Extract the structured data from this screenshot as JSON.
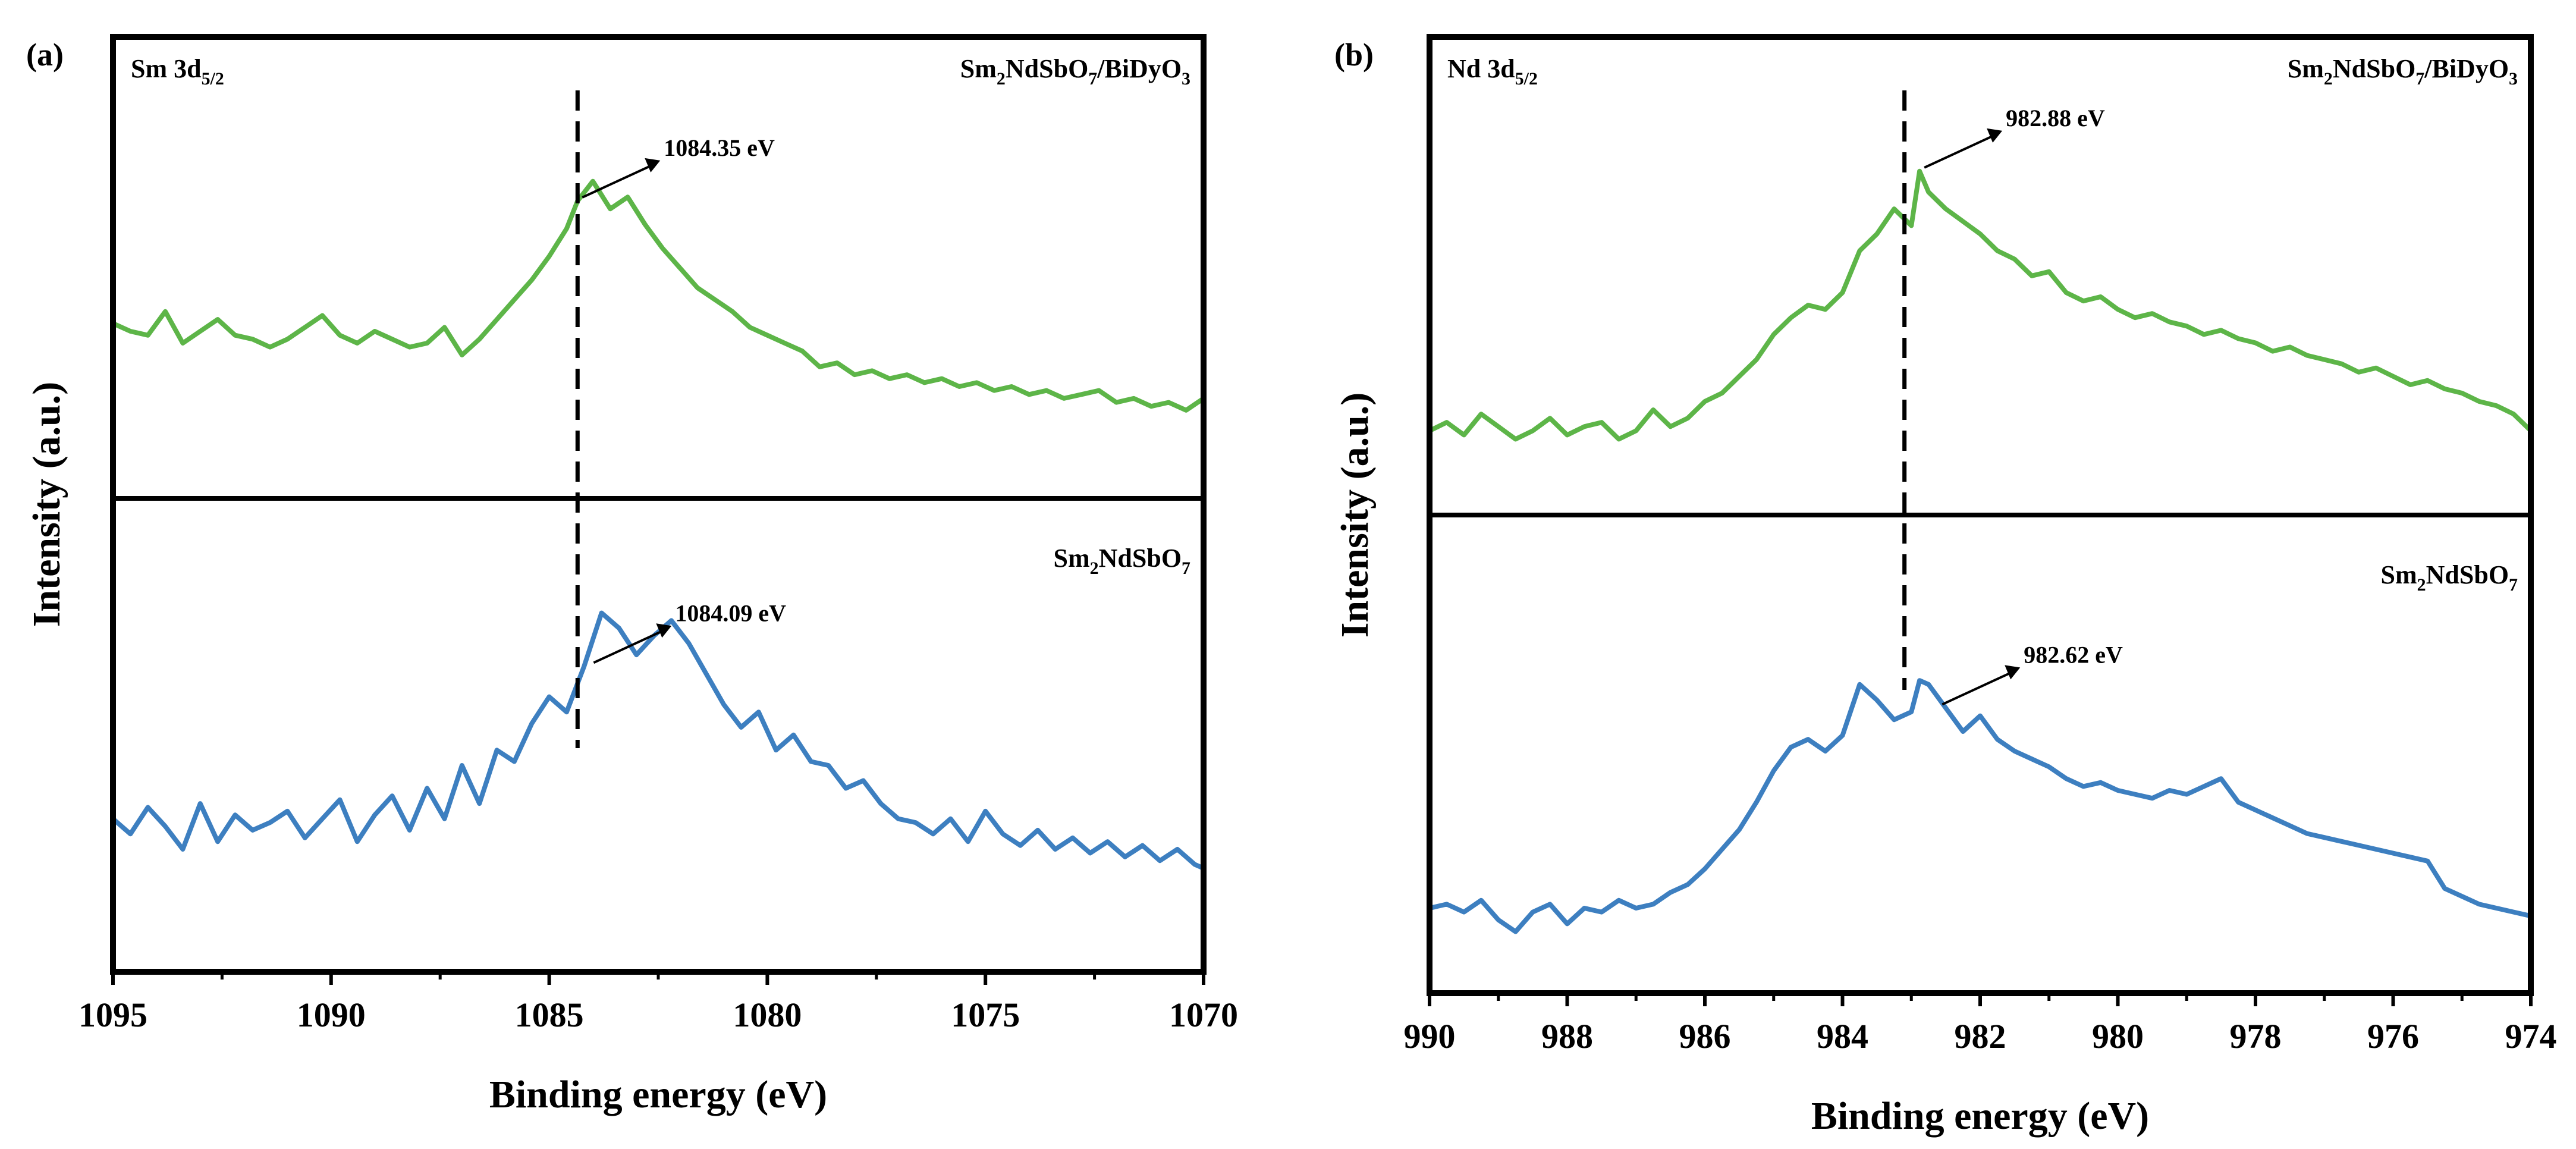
{
  "figure": {
    "colors": {
      "green": "#5db548",
      "blue": "#3d7fc0",
      "frame": "#000000"
    }
  },
  "chart_data": [
    {
      "type": "line",
      "panel_label": "(a)",
      "xlabel": "Binding energy (eV)",
      "ylabel": "Intensity (a.u.)",
      "xlim": [
        1095,
        1070
      ],
      "x_ticks": [
        1095,
        1090,
        1085,
        1080,
        1075,
        1070
      ],
      "x_tick_labels": [
        "1095",
        "1090",
        "1085",
        "1080",
        "1075",
        "1070"
      ],
      "x_minor_ticks": [
        1092.5,
        1087.5,
        1082.5,
        1077.5,
        1072.5
      ],
      "corner_label": {
        "base": "Sm 3d",
        "sub": "5/2"
      },
      "ref_line_x": 1084.35,
      "series": [
        {
          "name": "Sm2NdSbO7/BiDyO3",
          "name_parts": [
            [
              "Sm",
              ""
            ],
            [
              "2",
              "sub"
            ],
            [
              "NdSbO",
              ""
            ],
            [
              "7",
              "sub"
            ],
            [
              "/BiDyO",
              ""
            ],
            [
              "3",
              "sub"
            ]
          ],
          "color": "#5db548",
          "peak": {
            "x": 1084.35,
            "label": "1084.35 eV"
          },
          "ylim": [
            0,
            100
          ],
          "x": [
            1095.0,
            1094.6,
            1094.2,
            1093.8,
            1093.4,
            1093.0,
            1092.6,
            1092.2,
            1091.8,
            1091.4,
            1091.0,
            1090.6,
            1090.2,
            1089.8,
            1089.4,
            1089.0,
            1088.6,
            1088.2,
            1087.8,
            1087.4,
            1087.0,
            1086.6,
            1086.2,
            1085.8,
            1085.4,
            1085.0,
            1084.6,
            1084.35,
            1084.0,
            1083.6,
            1083.2,
            1082.8,
            1082.4,
            1082.0,
            1081.6,
            1081.2,
            1080.8,
            1080.4,
            1080.0,
            1079.6,
            1079.2,
            1078.8,
            1078.4,
            1078.0,
            1077.6,
            1077.2,
            1076.8,
            1076.4,
            1076.0,
            1075.6,
            1075.2,
            1074.8,
            1074.4,
            1074.0,
            1073.6,
            1073.2,
            1072.8,
            1072.4,
            1072.0,
            1071.6,
            1071.2,
            1070.8,
            1070.4,
            1070.0
          ],
          "y": [
            41,
            39,
            38,
            44,
            36,
            39,
            42,
            38,
            37,
            35,
            37,
            40,
            43,
            38,
            36,
            39,
            37,
            35,
            36,
            40,
            33,
            37,
            42,
            47,
            52,
            58,
            65,
            72,
            77,
            70,
            73,
            66,
            60,
            55,
            50,
            47,
            44,
            40,
            38,
            36,
            34,
            30,
            31,
            28,
            29,
            27,
            28,
            26,
            27,
            25,
            26,
            24,
            25,
            23,
            24,
            22,
            23,
            24,
            21,
            22,
            20,
            21,
            19,
            22
          ]
        },
        {
          "name": "Sm2NdSbO7",
          "name_parts": [
            [
              "Sm",
              ""
            ],
            [
              "2",
              "sub"
            ],
            [
              "NdSbO",
              ""
            ],
            [
              "7",
              "sub"
            ]
          ],
          "color": "#3d7fc0",
          "peak": {
            "x": 1084.09,
            "label": "1084.09 eV"
          },
          "ylim": [
            0,
            100
          ],
          "x": [
            1095.0,
            1094.6,
            1094.2,
            1093.8,
            1093.4,
            1093.0,
            1092.6,
            1092.2,
            1091.8,
            1091.4,
            1091.0,
            1090.6,
            1090.2,
            1089.8,
            1089.4,
            1089.0,
            1088.6,
            1088.2,
            1087.8,
            1087.4,
            1087.0,
            1086.6,
            1086.2,
            1085.8,
            1085.4,
            1085.0,
            1084.6,
            1084.2,
            1083.8,
            1083.4,
            1083.0,
            1082.6,
            1082.2,
            1081.8,
            1081.4,
            1081.0,
            1080.6,
            1080.2,
            1079.8,
            1079.4,
            1079.0,
            1078.6,
            1078.2,
            1077.8,
            1077.4,
            1077.0,
            1076.6,
            1076.2,
            1075.8,
            1075.4,
            1075.0,
            1074.6,
            1074.2,
            1073.8,
            1073.4,
            1073.0,
            1072.6,
            1072.2,
            1071.8,
            1071.4,
            1071.0,
            1070.6,
            1070.2,
            1070.0
          ],
          "y": [
            30,
            26,
            33,
            28,
            22,
            34,
            24,
            31,
            27,
            29,
            32,
            25,
            30,
            35,
            24,
            31,
            36,
            27,
            38,
            30,
            44,
            34,
            48,
            45,
            55,
            62,
            58,
            70,
            84,
            80,
            73,
            78,
            82,
            76,
            68,
            60,
            54,
            58,
            48,
            52,
            45,
            44,
            38,
            40,
            34,
            30,
            29,
            26,
            30,
            24,
            32,
            26,
            23,
            27,
            22,
            25,
            21,
            24,
            20,
            23,
            19,
            22,
            18,
            17
          ]
        }
      ]
    },
    {
      "type": "line",
      "panel_label": "(b)",
      "xlabel": "Binding energy (eV)",
      "ylabel": "Intensity (a.u.)",
      "xlim": [
        990,
        974
      ],
      "x_ticks": [
        990,
        988,
        986,
        984,
        982,
        980,
        978,
        976,
        974
      ],
      "x_tick_labels": [
        "990",
        "988",
        "986",
        "984",
        "982",
        "980",
        "978",
        "976",
        "974"
      ],
      "x_minor_ticks": [
        989,
        987,
        985,
        983,
        981,
        979,
        977,
        975
      ],
      "corner_label": {
        "base": "Nd 3d",
        "sub": "5/2"
      },
      "ref_line_x": 983.1,
      "series": [
        {
          "name": "Sm2NdSbO7/BiDyO3",
          "name_parts": [
            [
              "Sm",
              ""
            ],
            [
              "2",
              "sub"
            ],
            [
              "NdSbO",
              ""
            ],
            [
              "7",
              "sub"
            ],
            [
              "/BiDyO",
              ""
            ],
            [
              "3",
              "sub"
            ]
          ],
          "color": "#5db548",
          "peak": {
            "x": 982.88,
            "label": "982.88 eV"
          },
          "ylim": [
            0,
            100
          ],
          "x": [
            990.0,
            989.75,
            989.5,
            989.25,
            989.0,
            988.75,
            988.5,
            988.25,
            988.0,
            987.75,
            987.5,
            987.25,
            987.0,
            986.75,
            986.5,
            986.25,
            986.0,
            985.75,
            985.5,
            985.25,
            985.0,
            984.75,
            984.5,
            984.25,
            984.0,
            983.75,
            983.5,
            983.25,
            983.0,
            982.88,
            982.75,
            982.5,
            982.25,
            982.0,
            981.75,
            981.5,
            981.25,
            981.0,
            980.75,
            980.5,
            980.25,
            980.0,
            979.75,
            979.5,
            979.25,
            979.0,
            978.75,
            978.5,
            978.25,
            978.0,
            977.75,
            977.5,
            977.25,
            977.0,
            976.75,
            976.5,
            976.25,
            976.0,
            975.75,
            975.5,
            975.25,
            975.0,
            974.75,
            974.5,
            974.25,
            974.0
          ],
          "y": [
            17,
            19,
            16,
            21,
            18,
            15,
            17,
            20,
            16,
            18,
            19,
            15,
            17,
            22,
            18,
            20,
            24,
            26,
            30,
            34,
            40,
            44,
            47,
            46,
            50,
            60,
            64,
            70,
            66,
            79,
            74,
            70,
            67,
            64,
            60,
            58,
            54,
            55,
            50,
            48,
            49,
            46,
            44,
            45,
            43,
            42,
            40,
            41,
            39,
            38,
            36,
            37,
            35,
            34,
            33,
            31,
            32,
            30,
            28,
            29,
            27,
            26,
            24,
            23,
            21,
            17
          ]
        },
        {
          "name": "Sm2NdSbO7",
          "name_parts": [
            [
              "Sm",
              ""
            ],
            [
              "2",
              "sub"
            ],
            [
              "NdSbO",
              ""
            ],
            [
              "7",
              "sub"
            ]
          ],
          "color": "#3d7fc0",
          "peak": {
            "x": 982.62,
            "label": "982.62 eV"
          },
          "ylim": [
            0,
            100
          ],
          "x": [
            990.0,
            989.75,
            989.5,
            989.25,
            989.0,
            988.75,
            988.5,
            988.25,
            988.0,
            987.75,
            987.5,
            987.25,
            987.0,
            986.75,
            986.5,
            986.25,
            986.0,
            985.75,
            985.5,
            985.25,
            985.0,
            984.75,
            984.5,
            984.25,
            984.0,
            983.75,
            983.5,
            983.25,
            983.0,
            982.88,
            982.75,
            982.5,
            982.25,
            982.0,
            981.75,
            981.5,
            981.25,
            981.0,
            980.75,
            980.5,
            980.25,
            980.0,
            979.75,
            979.5,
            979.25,
            979.0,
            978.75,
            978.5,
            978.25,
            978.0,
            977.75,
            977.5,
            977.25,
            977.0,
            976.75,
            976.5,
            976.25,
            976.0,
            975.75,
            975.5,
            975.25,
            975.0,
            974.75,
            974.5,
            974.25,
            974.0
          ],
          "y": [
            15,
            16,
            14,
            17,
            12,
            9,
            14,
            16,
            11,
            15,
            14,
            17,
            15,
            16,
            19,
            21,
            25,
            30,
            35,
            42,
            50,
            56,
            58,
            55,
            59,
            72,
            68,
            63,
            65,
            73,
            72,
            66,
            60,
            64,
            58,
            55,
            53,
            51,
            48,
            46,
            47,
            45,
            44,
            43,
            45,
            44,
            46,
            48,
            42,
            40,
            38,
            36,
            34,
            33,
            32,
            31,
            30,
            29,
            28,
            27,
            20,
            18,
            16,
            15,
            14,
            13
          ]
        }
      ]
    }
  ]
}
